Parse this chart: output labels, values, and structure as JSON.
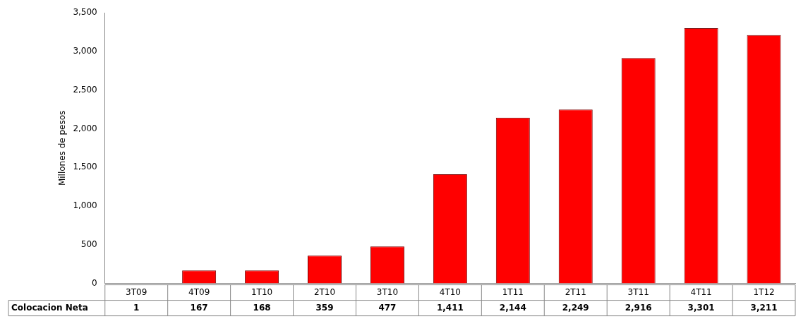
{
  "chart_data": {
    "type": "bar",
    "ylabel": "Millones de pesos",
    "categories": [
      "3T09",
      "4T09",
      "1T10",
      "2T10",
      "3T10",
      "4T10",
      "1T11",
      "2T11",
      "3T11",
      "4T11",
      "1T12"
    ],
    "series": [
      {
        "name": "Colocacion Neta",
        "colors": [
          "#8b0000",
          "#ff0000",
          "#ff0000",
          "#ff0000",
          "#ff0000",
          "#ff0000",
          "#ff0000",
          "#ff0000",
          "#ff0000",
          "#ff0000",
          "#ff0000"
        ],
        "values": [
          1,
          167,
          168,
          359,
          477,
          1411,
          2144,
          2249,
          2916,
          3301,
          3211
        ],
        "value_labels": [
          "1",
          "167",
          "168",
          "359",
          "477",
          "1,411",
          "2,144",
          "2,249",
          "2,916",
          "3,301",
          "3,211"
        ]
      }
    ],
    "ylim": [
      0,
      3500
    ],
    "yticks": [
      0,
      500,
      {
        "value": 1000,
        "label": "1,000"
      },
      {
        "value": 1500,
        "label": "1,500"
      },
      {
        "value": 2000,
        "label": "2,000"
      },
      {
        "value": 2500,
        "label": "2,500"
      },
      {
        "value": 3000,
        "label": "3,000"
      },
      {
        "value": 3500,
        "label": "3,500"
      }
    ],
    "grid": false,
    "legend": false
  }
}
